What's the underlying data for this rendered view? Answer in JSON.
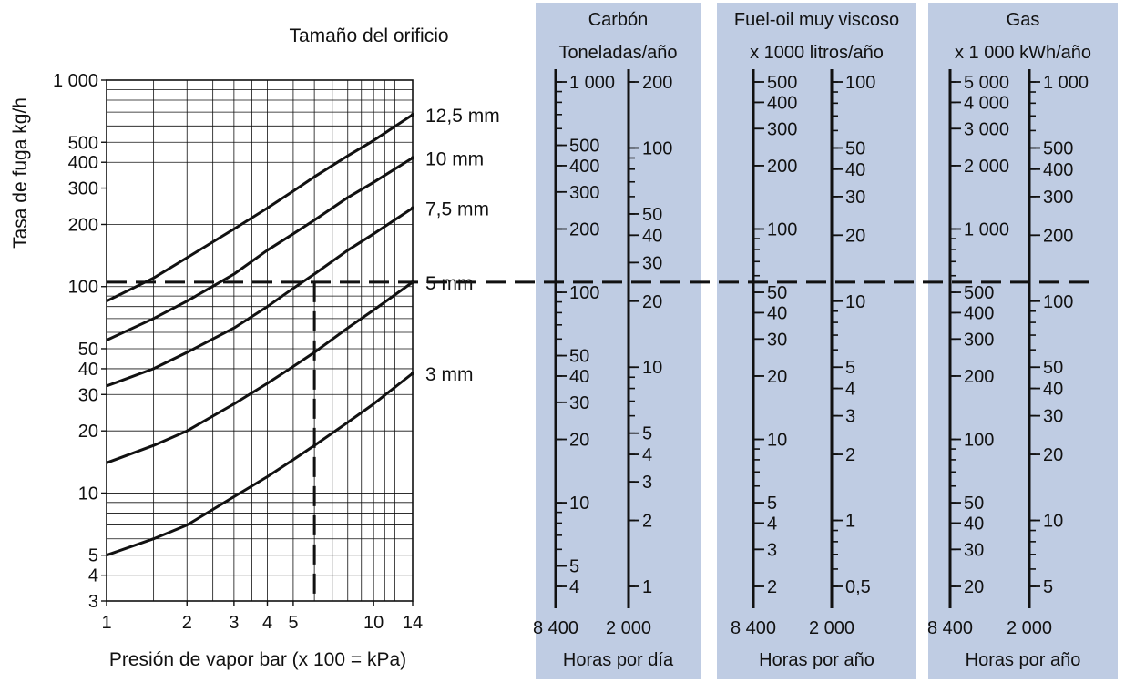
{
  "chart_data": {
    "type": "line",
    "title": "Tamaño del orificio",
    "xlabel": "Presión de vapor bar (x 100 = kPa)",
    "ylabel": "Tasa de fuga kg/h",
    "x_scale": "log",
    "y_scale": "log",
    "xlim": [
      1,
      14
    ],
    "ylim": [
      3,
      1000
    ],
    "x_ticks": [
      1,
      2,
      3,
      4,
      5,
      10,
      14
    ],
    "x_tick_labels": [
      "1",
      "2",
      "3",
      "4",
      "5",
      "10",
      "14"
    ],
    "y_ticks": [
      3,
      4,
      5,
      10,
      20,
      30,
      40,
      50,
      100,
      200,
      300,
      400,
      500,
      1000
    ],
    "y_tick_labels": [
      "3",
      "4",
      "5",
      "10",
      "20",
      "30",
      "40",
      "50",
      "100",
      "200",
      "300",
      "400",
      "500",
      "1 000"
    ],
    "grid": true,
    "series": [
      {
        "name": "12,5 mm",
        "x": [
          1,
          1.5,
          2,
          3,
          4,
          5,
          6,
          8,
          10,
          14
        ],
        "y": [
          85,
          110,
          138,
          190,
          240,
          290,
          340,
          430,
          510,
          680
        ]
      },
      {
        "name": "10 mm",
        "x": [
          1,
          1.5,
          2,
          3,
          4,
          5,
          6,
          8,
          10,
          14
        ],
        "y": [
          55,
          70,
          85,
          115,
          150,
          180,
          210,
          270,
          320,
          420
        ]
      },
      {
        "name": "7,5 mm",
        "x": [
          1,
          1.5,
          2,
          3,
          4,
          5,
          6,
          8,
          10,
          14
        ],
        "y": [
          33,
          40,
          48,
          63,
          80,
          98,
          115,
          150,
          180,
          240
        ]
      },
      {
        "name": "5 mm",
        "x": [
          1,
          1.5,
          2,
          3,
          4,
          5,
          6,
          8,
          10,
          14
        ],
        "y": [
          14,
          17,
          20,
          27,
          34,
          41,
          48,
          63,
          77,
          105
        ]
      },
      {
        "name": "3 mm",
        "x": [
          1,
          1.5,
          2,
          3,
          4,
          5,
          6,
          8,
          10,
          14
        ],
        "y": [
          5,
          6,
          7,
          9.6,
          12,
          14.5,
          17,
          22,
          27,
          38
        ]
      }
    ],
    "reference": {
      "x": 6,
      "y": 105
    },
    "scales": [
      {
        "title": "Carbón",
        "subtitle": "Toneladas/año",
        "footer": "Horas por día",
        "axes": [
          {
            "hours": "8 400",
            "labels": [
              {
                "text": "1 000",
                "v": 1000
              },
              {
                "text": "500",
                "v": 500
              },
              {
                "text": "400",
                "v": 400
              },
              {
                "text": "300",
                "v": 300
              },
              {
                "text": "200",
                "v": 200
              },
              {
                "text": "100",
                "v": 100
              },
              {
                "text": "50",
                "v": 50
              },
              {
                "text": "40",
                "v": 40
              },
              {
                "text": "30",
                "v": 30
              },
              {
                "text": "20",
                "v": 20
              },
              {
                "text": "10",
                "v": 10
              },
              {
                "text": "5",
                "v": 5
              },
              {
                "text": "4",
                "v": 4
              }
            ]
          },
          {
            "hours": "2 000",
            "labels": [
              {
                "text": "200",
                "v": 200
              },
              {
                "text": "100",
                "v": 100
              },
              {
                "text": "50",
                "v": 50
              },
              {
                "text": "40",
                "v": 40
              },
              {
                "text": "30",
                "v": 30
              },
              {
                "text": "20",
                "v": 20
              },
              {
                "text": "10",
                "v": 10
              },
              {
                "text": "5",
                "v": 5
              },
              {
                "text": "4",
                "v": 4
              },
              {
                "text": "3",
                "v": 3
              },
              {
                "text": "2",
                "v": 2
              },
              {
                "text": "1",
                "v": 1
              }
            ]
          }
        ]
      },
      {
        "title": "Fuel-oil muy viscoso",
        "subtitle": "x 1000 litros/año",
        "footer": "Horas por año",
        "axes": [
          {
            "hours": "8 400",
            "labels": [
              {
                "text": "500",
                "v": 500
              },
              {
                "text": "400",
                "v": 400
              },
              {
                "text": "300",
                "v": 300
              },
              {
                "text": "200",
                "v": 200
              },
              {
                "text": "100",
                "v": 100
              },
              {
                "text": "50",
                "v": 50
              },
              {
                "text": "40",
                "v": 40
              },
              {
                "text": "30",
                "v": 30
              },
              {
                "text": "20",
                "v": 20
              },
              {
                "text": "10",
                "v": 10
              },
              {
                "text": "5",
                "v": 5
              },
              {
                "text": "4",
                "v": 4
              },
              {
                "text": "3",
                "v": 3
              },
              {
                "text": "2",
                "v": 2
              }
            ]
          },
          {
            "hours": "2 000",
            "labels": [
              {
                "text": "100",
                "v": 100
              },
              {
                "text": "50",
                "v": 50
              },
              {
                "text": "40",
                "v": 40
              },
              {
                "text": "30",
                "v": 30
              },
              {
                "text": "20",
                "v": 20
              },
              {
                "text": "10",
                "v": 10
              },
              {
                "text": "5",
                "v": 5
              },
              {
                "text": "4",
                "v": 4
              },
              {
                "text": "3",
                "v": 3
              },
              {
                "text": "2",
                "v": 2
              },
              {
                "text": "1",
                "v": 1
              },
              {
                "text": "0,5",
                "v": 0.5
              }
            ]
          }
        ]
      },
      {
        "title": "Gas",
        "subtitle": "x 1 000 kWh/año",
        "footer": "Horas por año",
        "axes": [
          {
            "hours": "8 400",
            "labels": [
              {
                "text": "5 000",
                "v": 5000
              },
              {
                "text": "4 000",
                "v": 4000
              },
              {
                "text": "3 000",
                "v": 3000
              },
              {
                "text": "2 000",
                "v": 2000
              },
              {
                "text": "1 000",
                "v": 1000
              },
              {
                "text": "500",
                "v": 500
              },
              {
                "text": "400",
                "v": 400
              },
              {
                "text": "300",
                "v": 300
              },
              {
                "text": "200",
                "v": 200
              },
              {
                "text": "100",
                "v": 100
              },
              {
                "text": "50",
                "v": 50
              },
              {
                "text": "40",
                "v": 40
              },
              {
                "text": "30",
                "v": 30
              },
              {
                "text": "20",
                "v": 20
              }
            ]
          },
          {
            "hours": "2 000",
            "labels": [
              {
                "text": "1 000",
                "v": 1000
              },
              {
                "text": "500",
                "v": 500
              },
              {
                "text": "400",
                "v": 400
              },
              {
                "text": "300",
                "v": 300
              },
              {
                "text": "200",
                "v": 200
              },
              {
                "text": "100",
                "v": 100
              },
              {
                "text": "50",
                "v": 50
              },
              {
                "text": "40",
                "v": 40
              },
              {
                "text": "30",
                "v": 30
              },
              {
                "text": "20",
                "v": 20
              },
              {
                "text": "10",
                "v": 10
              },
              {
                "text": "5",
                "v": 5
              }
            ]
          }
        ]
      }
    ]
  },
  "colors": {
    "panel": "#bfcce3",
    "ink": "#111111"
  }
}
